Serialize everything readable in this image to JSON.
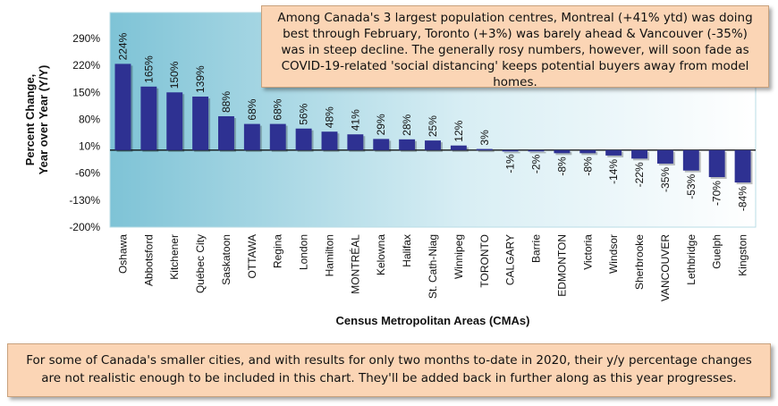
{
  "chart_data": {
    "type": "bar",
    "title": "",
    "ylabel": "Percent Change, Year over Year (Y/Y)",
    "ylabel_lines": [
      "Percent Change,",
      "Year over Year (Y/Y)"
    ],
    "xlabel": "Census Metropolitan Areas (CMAs)",
    "ylim": [
      -200,
      290
    ],
    "yticks": [
      290,
      220,
      150,
      80,
      10,
      -60,
      -130,
      -200
    ],
    "ytick_labels": [
      "290%",
      "220%",
      "150%",
      "80%",
      "10%",
      "-60%",
      "-130%",
      "-200%"
    ],
    "grid": false,
    "bar_color": "#2e3192",
    "categories": [
      "Oshawa",
      "Abbotsford",
      "Kitchener",
      "Québec City",
      "Saskatoon",
      "OTTAWA",
      "Regina",
      "London",
      "Hamilton",
      "MONTRÉAL",
      "Kelowna",
      "Halifax",
      "St. Cath-Niag",
      "Winnipeg",
      "TORONTO",
      "CALGARY",
      "Barrie",
      "EDMONTON",
      "Victoria",
      "Windsor",
      "Sherbrooke",
      "VANCOUVER",
      "Lethbridge",
      "Guelph",
      "Kingston"
    ],
    "values": [
      224,
      165,
      150,
      139,
      88,
      68,
      68,
      56,
      48,
      41,
      29,
      28,
      25,
      12,
      3,
      -1,
      -2,
      -8,
      -8,
      -14,
      -22,
      -35,
      -53,
      -70,
      -84
    ],
    "value_labels": [
      "224%",
      "165%",
      "150%",
      "139%",
      "88%",
      "68%",
      "68%",
      "56%",
      "48%",
      "41%",
      "29%",
      "28%",
      "25%",
      "12%",
      "3%",
      "-1%",
      "-2%",
      "-8%",
      "-8%",
      "-14%",
      "-22%",
      "-35%",
      "-53%",
      "-70%",
      "-84%"
    ]
  },
  "callouts": {
    "top": "Among Canada's 3 largest population centres, Montreal (+41% ytd) was doing best through February, Toronto (+3%) was barely ahead & Vancouver (-35%) was in steep decline. The generally rosy numbers, however, will soon fade as COVID-19-related 'social distancing' keeps potential buyers away from model homes.",
    "bottom": "For some of Canada's smaller cities, and with results for only two months to-date in 2020, their y/y percentage changes are not realistic enough to be included in this chart. They'll be added back in further along as this year progresses."
  },
  "colors": {
    "plot_gradient_left": "#7ec3d6",
    "plot_gradient_right": "#ffffff",
    "bar": "#2e3192",
    "callout_fill": "#fbd5b5"
  }
}
